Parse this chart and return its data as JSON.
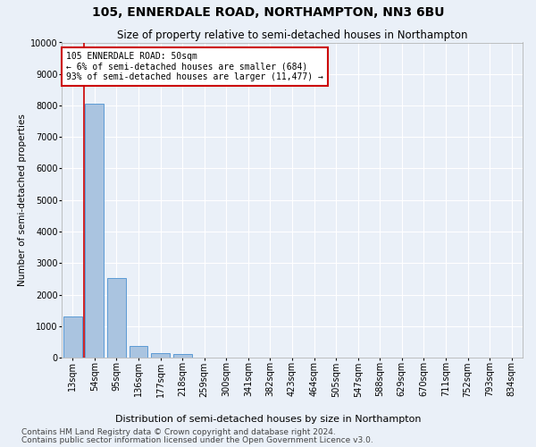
{
  "title1": "105, ENNERDALE ROAD, NORTHAMPTON, NN3 6BU",
  "title2": "Size of property relative to semi-detached houses in Northampton",
  "xlabel": "Distribution of semi-detached houses by size in Northampton",
  "ylabel": "Number of semi-detached properties",
  "footnote1": "Contains HM Land Registry data © Crown copyright and database right 2024.",
  "footnote2": "Contains public sector information licensed under the Open Government Licence v3.0.",
  "categories": [
    "13sqm",
    "54sqm",
    "95sqm",
    "136sqm",
    "177sqm",
    "218sqm",
    "259sqm",
    "300sqm",
    "341sqm",
    "382sqm",
    "423sqm",
    "464sqm",
    "505sqm",
    "547sqm",
    "588sqm",
    "629sqm",
    "670sqm",
    "711sqm",
    "752sqm",
    "793sqm",
    "834sqm"
  ],
  "values": [
    1300,
    8050,
    2530,
    380,
    145,
    100,
    0,
    0,
    0,
    0,
    0,
    0,
    0,
    0,
    0,
    0,
    0,
    0,
    0,
    0,
    0
  ],
  "bar_color": "#aac4e0",
  "bar_edge_color": "#5b9bd5",
  "annotation_text": "105 ENNERDALE ROAD: 50sqm\n← 6% of semi-detached houses are smaller (684)\n93% of semi-detached houses are larger (11,477) →",
  "annotation_box_color": "#ffffff",
  "annotation_box_edge_color": "#cc0000",
  "vline_color": "#cc0000",
  "vline_x": 0.5,
  "ylim": [
    0,
    10000
  ],
  "yticks": [
    0,
    1000,
    2000,
    3000,
    4000,
    5000,
    6000,
    7000,
    8000,
    9000,
    10000
  ],
  "bg_color": "#eaf0f8",
  "plot_bg_color": "#eaf0f8",
  "grid_color": "#ffffff",
  "title1_fontsize": 10,
  "title2_fontsize": 8.5,
  "xlabel_fontsize": 8,
  "ylabel_fontsize": 7.5,
  "tick_fontsize": 7,
  "annotation_fontsize": 7,
  "footnote_fontsize": 6.5
}
